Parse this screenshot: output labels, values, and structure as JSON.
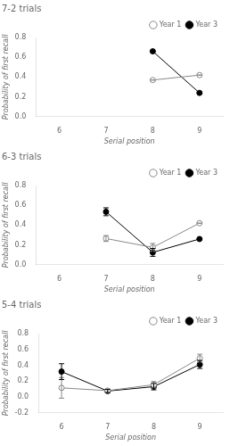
{
  "chart_data": [
    {
      "type": "line",
      "title": "7-2 trials",
      "xlabel": "Serial position",
      "ylabel": "Probability of first recall",
      "x": [
        8,
        9
      ],
      "xlim": [
        5.5,
        9.5
      ],
      "xticks": [
        6,
        7,
        8,
        9
      ],
      "ylim": [
        0,
        0.8
      ],
      "yticks": [
        {
          "value": 0,
          "label": "0.0"
        },
        0.2,
        0.4,
        0.6,
        0.8
      ],
      "grid": false,
      "legend": "upper right",
      "series": [
        {
          "name": "Year 1",
          "color": "#888888",
          "marker": "open_circle",
          "values": [
            0.37,
            0.42
          ],
          "yerr": [
            0.0,
            0.0
          ]
        },
        {
          "name": "Year 3",
          "color": "#000000",
          "marker": "circle",
          "values": [
            0.66,
            0.24
          ],
          "yerr": [
            0.0,
            0.0
          ]
        }
      ]
    },
    {
      "type": "line",
      "title": "6-3 trials",
      "xlabel": "Serial position",
      "ylabel": "Probability of first recall",
      "x": [
        7,
        8,
        9
      ],
      "xlim": [
        5.5,
        9.5
      ],
      "xticks": [
        6,
        7,
        8,
        9
      ],
      "ylim": [
        0,
        0.8
      ],
      "yticks": [
        {
          "value": 0,
          "label": "0.0"
        },
        0.2,
        0.4,
        0.6,
        0.8
      ],
      "grid": false,
      "legend": "upper right",
      "series": [
        {
          "name": "Year 1",
          "color": "#888888",
          "marker": "open_circle",
          "values": [
            0.265,
            0.175,
            0.42
          ],
          "yerr": [
            0.03,
            0.04,
            0.0
          ]
        },
        {
          "name": "Year 3",
          "color": "#000000",
          "marker": "circle",
          "values": [
            0.535,
            0.125,
            0.26
          ],
          "yerr": [
            0.04,
            0.04,
            0.0
          ]
        }
      ]
    },
    {
      "type": "line",
      "title": "5-4 trials",
      "xlabel": "Serial position",
      "ylabel": "Probability of first recall",
      "x": [
        6,
        7,
        8,
        9
      ],
      "xlim": [
        5.5,
        9.5
      ],
      "xticks": [
        6,
        7,
        8,
        9
      ],
      "ylim": [
        -0.2,
        0.8
      ],
      "yticks": [
        -0.2,
        {
          "value": 0,
          "label": "0.0"
        },
        0.2,
        0.4,
        0.6,
        0.8
      ],
      "grid": false,
      "legend": "upper right",
      "series": [
        {
          "name": "Year 1",
          "color": "#888888",
          "marker": "open_circle",
          "values": [
            0.115,
            0.08,
            0.155,
            0.49
          ],
          "yerr": [
            0.13,
            0.02,
            0.04,
            0.05
          ]
        },
        {
          "name": "Year 3",
          "color": "#000000",
          "marker": "circle",
          "values": [
            0.32,
            0.075,
            0.13,
            0.41
          ],
          "yerr": [
            0.1,
            0.02,
            0.04,
            0.05
          ]
        }
      ]
    }
  ]
}
